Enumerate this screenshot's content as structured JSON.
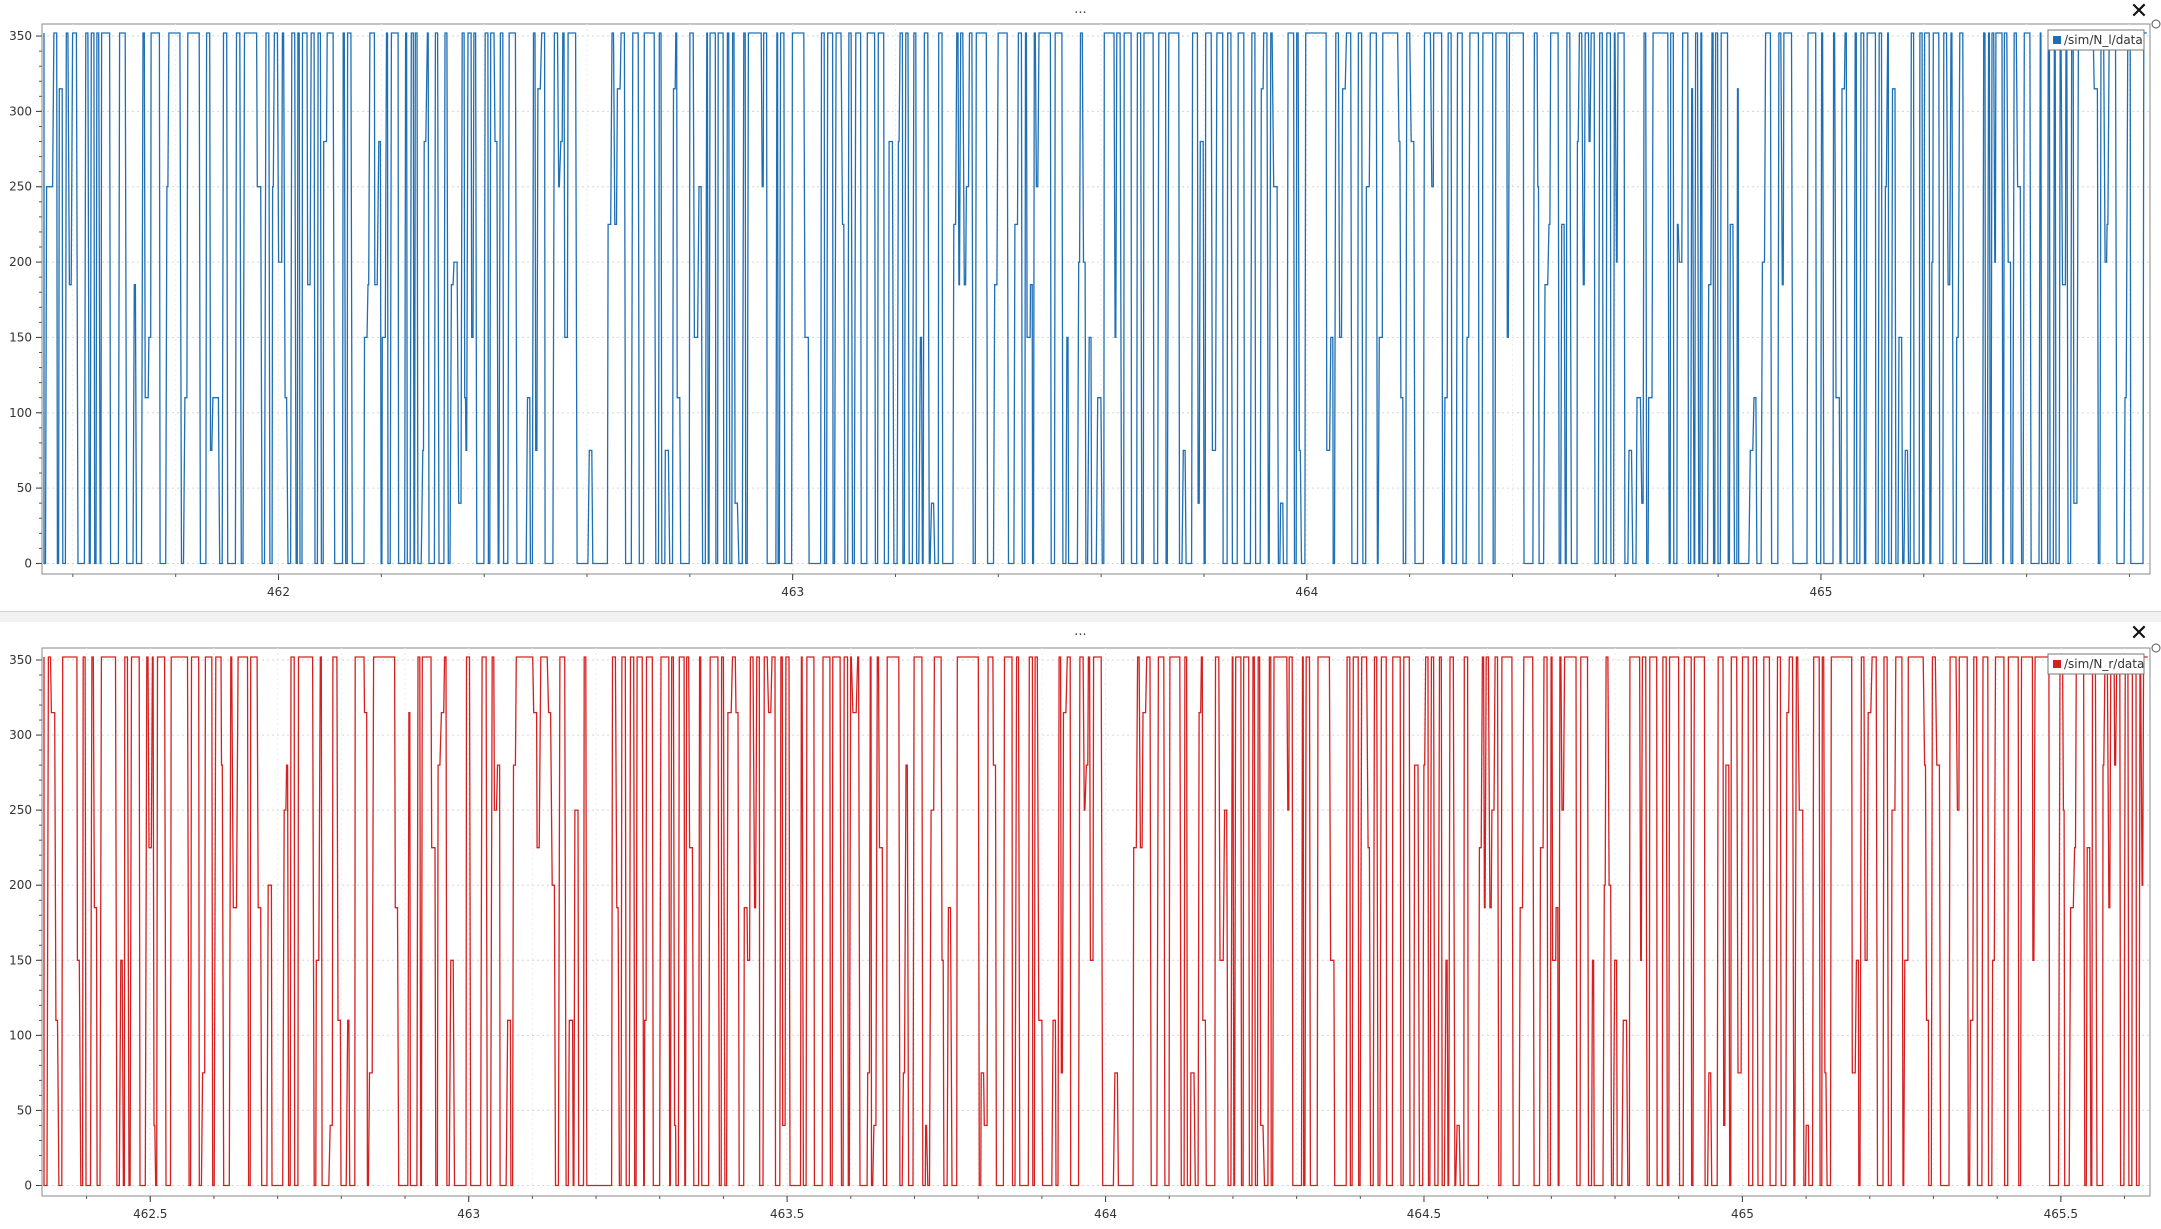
{
  "panels": [
    {
      "title": "...",
      "close_icon": "close-icon",
      "legend": "/sim/N_l/data",
      "color": "#1f6fb4"
    },
    {
      "title": "...",
      "close_icon": "close-icon",
      "legend": "/sim/N_r/data",
      "color": "#d62020"
    }
  ],
  "chart_data": [
    {
      "type": "line",
      "series": [
        {
          "name": "/sim/N_l/data",
          "color": "#1f6fb4"
        }
      ],
      "xlim": [
        461.54,
        465.64
      ],
      "ylim": [
        -7,
        358
      ],
      "x_ticks": [
        462,
        463,
        464,
        465
      ],
      "x_tick_labels": [
        "462",
        "463",
        "464",
        "465"
      ],
      "y_ticks": [
        0,
        50,
        100,
        150,
        200,
        250,
        300,
        350
      ],
      "y_tick_labels": [
        "0",
        "50",
        "100",
        "150",
        "200",
        "250",
        "300",
        "350"
      ],
      "value_levels": [
        0,
        40,
        75,
        110,
        150,
        185,
        200,
        225,
        250,
        280,
        315,
        352
      ],
      "grid": true,
      "legend_position": "top-right"
    },
    {
      "type": "line",
      "series": [
        {
          "name": "/sim/N_r/data",
          "color": "#d62020"
        }
      ],
      "xlim": [
        462.33,
        465.64
      ],
      "ylim": [
        -7,
        358
      ],
      "x_ticks": [
        462.5,
        463,
        463.5,
        464,
        464.5,
        465,
        465.5
      ],
      "x_tick_labels": [
        "462.5",
        "463",
        "463.5",
        "464",
        "464.5",
        "465",
        "465.5"
      ],
      "y_ticks": [
        0,
        50,
        100,
        150,
        200,
        250,
        300,
        350
      ],
      "y_tick_labels": [
        "0",
        "50",
        "100",
        "150",
        "200",
        "250",
        "300",
        "350"
      ],
      "value_levels": [
        0,
        40,
        75,
        110,
        150,
        185,
        200,
        225,
        250,
        280,
        315,
        352
      ],
      "grid": true,
      "legend_position": "top-right"
    }
  ]
}
